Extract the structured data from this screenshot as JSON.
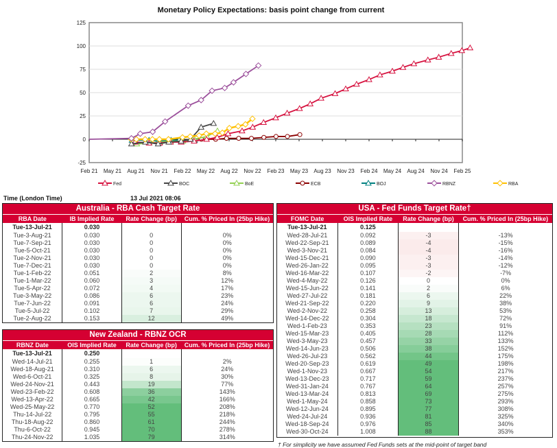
{
  "chart_data": {
    "type": "line",
    "title": "Monetary Policy Expectations: basis point change from current",
    "ylim": [
      -25,
      125
    ],
    "yticks": [
      -25,
      0,
      25,
      50,
      75,
      100,
      125
    ],
    "xticks": [
      "Feb 21",
      "May 21",
      "Aug 21",
      "Nov 21",
      "Feb 22",
      "May 22",
      "Aug 22",
      "Nov 22",
      "Feb 23",
      "May 23",
      "Aug 23",
      "Nov 23",
      "Feb 24",
      "May 24",
      "Aug 24",
      "Nov 24",
      "Feb 25"
    ],
    "grid": "horizontal",
    "legend": "bottom",
    "series": [
      {
        "name": "Fed",
        "color": "#d6113e",
        "marker": "triangle",
        "points": [
          [
            "2021-07-28",
            -3
          ],
          [
            "2021-09-22",
            -4
          ],
          [
            "2021-11-03",
            -4
          ],
          [
            "2021-12-15",
            -3
          ],
          [
            "2022-01-26",
            -3
          ],
          [
            "2022-03-16",
            -2
          ],
          [
            "2022-05-04",
            0
          ],
          [
            "2022-06-15",
            2
          ],
          [
            "2022-07-27",
            6
          ],
          [
            "2022-09-21",
            9
          ],
          [
            "2022-11-02",
            13
          ],
          [
            "2022-12-14",
            18
          ],
          [
            "2023-02-01",
            23
          ],
          [
            "2023-03-15",
            28
          ],
          [
            "2023-05-03",
            33
          ],
          [
            "2023-06-14",
            38
          ],
          [
            "2023-07-26",
            44
          ],
          [
            "2023-09-20",
            49
          ],
          [
            "2023-11-01",
            54
          ],
          [
            "2023-12-13",
            59
          ],
          [
            "2024-01-31",
            64
          ],
          [
            "2024-03-13",
            69
          ],
          [
            "2024-05-01",
            73
          ],
          [
            "2024-06-12",
            77
          ],
          [
            "2024-07-24",
            81
          ],
          [
            "2024-09-18",
            85
          ],
          [
            "2024-10-30",
            88
          ],
          [
            "2024-12-18",
            92
          ],
          [
            "2025-01-29",
            95
          ],
          [
            "2025-03-01",
            98
          ]
        ]
      },
      {
        "name": "BOC",
        "color": "#444444",
        "marker": "triangle",
        "points": [
          [
            "2021-07-14",
            -5
          ],
          [
            "2021-09-08",
            -3
          ],
          [
            "2021-10-27",
            -5
          ],
          [
            "2021-12-08",
            -3
          ],
          [
            "2022-01-26",
            -2
          ],
          [
            "2022-03-02",
            0
          ],
          [
            "2022-04-13",
            13
          ],
          [
            "2022-06-01",
            17
          ]
        ]
      },
      {
        "name": "BoE",
        "color": "#92d050",
        "marker": "triangle",
        "points": [
          [
            "2021-08-05",
            -5
          ],
          [
            "2021-09-23",
            -4
          ],
          [
            "2021-11-04",
            -3
          ],
          [
            "2021-12-16",
            -2
          ],
          [
            "2022-02-03",
            -2
          ],
          [
            "2022-03-17",
            0
          ],
          [
            "2022-05-05",
            3
          ],
          [
            "2022-06-16",
            9
          ]
        ]
      },
      {
        "name": "ECB",
        "color": "#8b0000",
        "marker": "circle",
        "points": [
          [
            "2022-03-10",
            1
          ],
          [
            "2022-04-14",
            0
          ],
          [
            "2022-06-09",
            0
          ],
          [
            "2022-07-21",
            1
          ],
          [
            "2022-09-08",
            1
          ],
          [
            "2022-10-27",
            1
          ],
          [
            "2022-12-15",
            2
          ],
          [
            "2023-02-02",
            3
          ],
          [
            "2023-03-16",
            3
          ],
          [
            "2023-05-04",
            5
          ]
        ]
      },
      {
        "name": "BOJ",
        "color": "#008080",
        "marker": "triangle",
        "points": [
          [
            "2021-07-16",
            -1
          ],
          [
            "2021-09-22",
            -1
          ],
          [
            "2021-10-28",
            -2
          ],
          [
            "2021-12-17",
            -1
          ],
          [
            "2022-01-18",
            -1
          ],
          [
            "2022-03-18",
            -1
          ]
        ]
      },
      {
        "name": "RBNZ",
        "color": "#9b4f9b",
        "marker": "diamond",
        "points": [
          [
            "2021-02-01",
            0
          ],
          [
            "2021-07-14",
            1
          ],
          [
            "2021-08-18",
            6
          ],
          [
            "2021-10-06",
            8
          ],
          [
            "2021-11-24",
            19
          ],
          [
            "2022-02-23",
            36
          ],
          [
            "2022-04-13",
            42
          ],
          [
            "2022-05-25",
            52
          ],
          [
            "2022-07-14",
            55
          ],
          [
            "2022-08-18",
            61
          ],
          [
            "2022-10-06",
            70
          ],
          [
            "2022-11-24",
            79
          ]
        ]
      },
      {
        "name": "RBA",
        "color": "#ffc000",
        "marker": "diamond",
        "points": [
          [
            "2021-07-13",
            0
          ],
          [
            "2021-08-03",
            0
          ],
          [
            "2021-09-07",
            0
          ],
          [
            "2021-10-05",
            0
          ],
          [
            "2021-11-02",
            0
          ],
          [
            "2021-12-07",
            0
          ],
          [
            "2022-02-01",
            2
          ],
          [
            "2022-03-01",
            3
          ],
          [
            "2022-04-05",
            4
          ],
          [
            "2022-05-03",
            6
          ],
          [
            "2022-06-07",
            6
          ],
          [
            "2022-07-05",
            7
          ],
          [
            "2022-08-02",
            12
          ],
          [
            "2022-09-06",
            14
          ],
          [
            "2022-10-04",
            16
          ],
          [
            "2022-11-01",
            22
          ]
        ]
      }
    ]
  },
  "time_label": "Time (London Time)",
  "timestamp": "13 Jul 2021 08:06",
  "footnote": "† For simplicity we have assumed Fed Funds sets at the mid-point of target band",
  "tables": {
    "rba": {
      "title": "Australia - RBA Cash Target Rate",
      "headers": [
        "RBA Date",
        "IB Implied Rate",
        "Rate Change (bp)",
        "Cum. % Priced In (25bp Hike)"
      ],
      "rows": [
        [
          "Tue-13-Jul-21",
          "0.030",
          "",
          ""
        ],
        [
          "Tue-3-Aug-21",
          "0.030",
          "0",
          "0%"
        ],
        [
          "Tue-7-Sep-21",
          "0.030",
          "0",
          "0%"
        ],
        [
          "Tue-5-Oct-21",
          "0.030",
          "0",
          "0%"
        ],
        [
          "Tue-2-Nov-21",
          "0.030",
          "0",
          "0%"
        ],
        [
          "Tue-7-Dec-21",
          "0.030",
          "0",
          "0%"
        ],
        [
          "Tue-1-Feb-22",
          "0.051",
          "2",
          "8%"
        ],
        [
          "Tue-1-Mar-22",
          "0.060",
          "3",
          "12%"
        ],
        [
          "Tue-5-Apr-22",
          "0.072",
          "4",
          "17%"
        ],
        [
          "Tue-3-May-22",
          "0.086",
          "6",
          "23%"
        ],
        [
          "Tue-7-Jun-22",
          "0.091",
          "6",
          "24%"
        ],
        [
          "Tue-5-Jul-22",
          "0.102",
          "7",
          "29%"
        ],
        [
          "Tue-2-Aug-22",
          "0.153",
          "12",
          "49%"
        ]
      ]
    },
    "rbnz": {
      "title": "New Zealand - RBNZ OCR",
      "headers": [
        "RBNZ Date",
        "OIS Implied Rate",
        "Rate Change (bp)",
        "Cum. % Priced In (25bp Hike)"
      ],
      "rows": [
        [
          "Tue-13-Jul-21",
          "0.250",
          "",
          ""
        ],
        [
          "Wed-14-Jul-21",
          "0.255",
          "1",
          "2%"
        ],
        [
          "Wed-18-Aug-21",
          "0.310",
          "6",
          "24%"
        ],
        [
          "Wed-6-Oct-21",
          "0.325",
          "8",
          "30%"
        ],
        [
          "Wed-24-Nov-21",
          "0.443",
          "19",
          "77%"
        ],
        [
          "Wed-23-Feb-22",
          "0.608",
          "36",
          "143%"
        ],
        [
          "Wed-13-Apr-22",
          "0.665",
          "42",
          "166%"
        ],
        [
          "Wed-25-May-22",
          "0.770",
          "52",
          "208%"
        ],
        [
          "Thu-14-Jul-22",
          "0.795",
          "55",
          "218%"
        ],
        [
          "Thu-18-Aug-22",
          "0.860",
          "61",
          "244%"
        ],
        [
          "Thu-6-Oct-22",
          "0.945",
          "70",
          "278%"
        ],
        [
          "Thu-24-Nov-22",
          "1.035",
          "79",
          "314%"
        ]
      ]
    },
    "fed": {
      "title": "USA - Fed Funds Target Rate†",
      "headers": [
        "FOMC Date",
        "OIS Implied Rate",
        "Rate Change (bp)",
        "Cum. % Priced In (25bp Hike)"
      ],
      "rows": [
        [
          "Tue-13-Jul-21",
          "0.125",
          "",
          ""
        ],
        [
          "Wed-28-Jul-21",
          "0.092",
          "-3",
          "-13%"
        ],
        [
          "Wed-22-Sep-21",
          "0.089",
          "-4",
          "-15%"
        ],
        [
          "Wed-3-Nov-21",
          "0.084",
          "-4",
          "-16%"
        ],
        [
          "Wed-15-Dec-21",
          "0.090",
          "-3",
          "-14%"
        ],
        [
          "Wed-26-Jan-22",
          "0.095",
          "-3",
          "-12%"
        ],
        [
          "Wed-16-Mar-22",
          "0.107",
          "-2",
          "-7%"
        ],
        [
          "Wed-4-May-22",
          "0.126",
          "0",
          "0%"
        ],
        [
          "Wed-15-Jun-22",
          "0.141",
          "2",
          "6%"
        ],
        [
          "Wed-27-Jul-22",
          "0.181",
          "6",
          "22%"
        ],
        [
          "Wed-21-Sep-22",
          "0.220",
          "9",
          "38%"
        ],
        [
          "Wed-2-Nov-22",
          "0.258",
          "13",
          "53%"
        ],
        [
          "Wed-14-Dec-22",
          "0.304",
          "18",
          "72%"
        ],
        [
          "Wed-1-Feb-23",
          "0.353",
          "23",
          "91%"
        ],
        [
          "Wed-15-Mar-23",
          "0.405",
          "28",
          "112%"
        ],
        [
          "Wed-3-May-23",
          "0.457",
          "33",
          "133%"
        ],
        [
          "Wed-14-Jun-23",
          "0.506",
          "38",
          "152%"
        ],
        [
          "Wed-26-Jul-23",
          "0.562",
          "44",
          "175%"
        ],
        [
          "Wed-20-Sep-23",
          "0.619",
          "49",
          "198%"
        ],
        [
          "Wed-1-Nov-23",
          "0.667",
          "54",
          "217%"
        ],
        [
          "Wed-13-Dec-23",
          "0.717",
          "59",
          "237%"
        ],
        [
          "Wed-31-Jan-24",
          "0.767",
          "64",
          "257%"
        ],
        [
          "Wed-13-Mar-24",
          "0.813",
          "69",
          "275%"
        ],
        [
          "Wed-1-May-24",
          "0.858",
          "73",
          "293%"
        ],
        [
          "Wed-12-Jun-24",
          "0.895",
          "77",
          "308%"
        ],
        [
          "Wed-24-Jul-24",
          "0.936",
          "81",
          "325%"
        ],
        [
          "Wed-18-Sep-24",
          "0.976",
          "85",
          "340%"
        ],
        [
          "Wed-30-Oct-24",
          "1.008",
          "88",
          "353%"
        ]
      ]
    }
  }
}
